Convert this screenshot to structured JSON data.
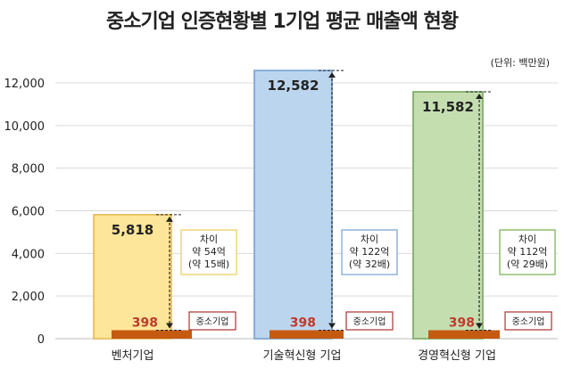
{
  "chart_data": {
    "type": "bar",
    "title": "중소기업 인증현황별 1기업 평균 매출액 현황",
    "unit": "(단위: 백만원)",
    "categories": [
      "벤처기업",
      "기술혁신형 기업",
      "경영혁신형 기업"
    ],
    "series": [
      {
        "name": "",
        "values": [
          5818,
          12582,
          11582
        ],
        "colors": [
          "#fde59a",
          "#bcd5ee",
          "#c5deb0"
        ],
        "borders": [
          "#e0b64a",
          "#6a9ccf",
          "#6ea354"
        ]
      },
      {
        "name": "중소기업",
        "values": [
          398,
          398,
          398
        ],
        "color": "#c55a11"
      }
    ],
    "value_labels": [
      "5,818",
      "12,582",
      "11,582"
    ],
    "small_labels": [
      "398",
      "398",
      "398"
    ],
    "small_label_tag": "중소기업",
    "callouts": [
      {
        "line1": "차이",
        "line2": "약 54억",
        "line3": "(약 15배)",
        "border": "#f0d575"
      },
      {
        "line1": "차이",
        "line2": "약 122억",
        "line3": "(약 32배)",
        "border": "#8fb4dc"
      },
      {
        "line1": "차이",
        "line2": "약 112억",
        "line3": "(약 29배)",
        "border": "#8fbd70"
      }
    ],
    "yticks": [
      "0",
      "2,000",
      "4,000",
      "6,000",
      "8,000",
      "10,000",
      "12,000"
    ],
    "ylim": [
      0,
      12000
    ],
    "grid": true
  }
}
